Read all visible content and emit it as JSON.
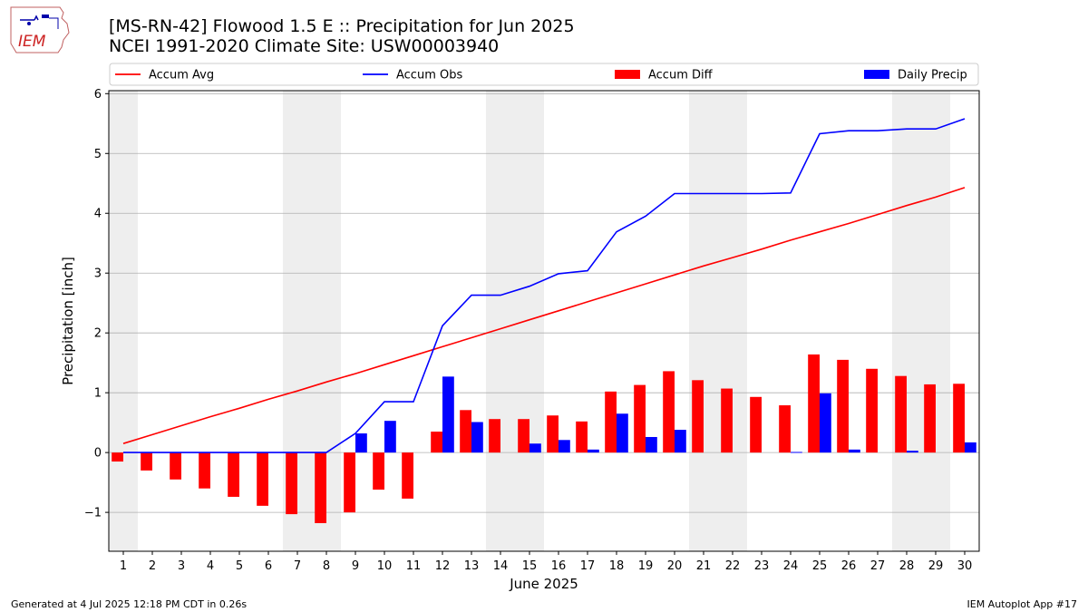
{
  "header": {
    "logo_text": "IEM",
    "title_line1": "[MS-RN-42] Flowood 1.5 E :: Precipitation for Jun 2025",
    "title_line2": "NCEI 1991-2020 Climate Site: USW00003940"
  },
  "footer": {
    "generated": "Generated at 4 Jul 2025 12:18 PM CDT in 0.26s",
    "app": "IEM Autoplot App #17"
  },
  "colors": {
    "avg": "#ff0000",
    "obs": "#0000ff",
    "diff": "#ff0000",
    "daily": "#0000ff",
    "weekend": "#eeeeee",
    "grid": "#b0b0b0"
  },
  "chart_data": {
    "type": "bar",
    "xlabel": "June 2025",
    "ylabel": "Precipitation [inch]",
    "ylim": [
      -1.65,
      6.05
    ],
    "yticks": [
      -1,
      0,
      1,
      2,
      3,
      4,
      5,
      6
    ],
    "xlim": [
      0.5,
      30.5
    ],
    "days": [
      1,
      2,
      3,
      4,
      5,
      6,
      7,
      8,
      9,
      10,
      11,
      12,
      13,
      14,
      15,
      16,
      17,
      18,
      19,
      20,
      21,
      22,
      23,
      24,
      25,
      26,
      27,
      28,
      29,
      30
    ],
    "weekend_shading": [
      [
        0.5,
        1.5
      ],
      [
        6.5,
        8.5
      ],
      [
        13.5,
        15.5
      ],
      [
        20.5,
        22.5
      ],
      [
        27.5,
        29.5
      ]
    ],
    "grid": true,
    "legend_position": "top",
    "legend": [
      "Accum Avg",
      "Accum Obs",
      "Accum Diff",
      "Daily Precip"
    ],
    "series": [
      {
        "name": "Accum Avg",
        "kind": "line",
        "values": [
          0.15,
          0.3,
          0.45,
          0.6,
          0.74,
          0.89,
          1.03,
          1.18,
          1.32,
          1.47,
          1.62,
          1.77,
          1.92,
          2.07,
          2.22,
          2.37,
          2.52,
          2.67,
          2.82,
          2.97,
          3.12,
          3.26,
          3.4,
          3.55,
          3.69,
          3.83,
          3.98,
          4.13,
          4.27,
          4.43
        ]
      },
      {
        "name": "Accum Obs",
        "kind": "line",
        "values": [
          0,
          0,
          0,
          0,
          0,
          0,
          0,
          0,
          0.32,
          0.85,
          0.85,
          2.12,
          2.63,
          2.63,
          2.78,
          2.99,
          3.04,
          3.69,
          3.95,
          4.33,
          4.33,
          4.33,
          4.33,
          4.34,
          5.33,
          5.38,
          5.38,
          5.41,
          5.41,
          5.58
        ]
      },
      {
        "name": "Accum Diff",
        "kind": "bar",
        "values": [
          -0.15,
          -0.3,
          -0.45,
          -0.6,
          -0.74,
          -0.89,
          -1.03,
          -1.18,
          -1.0,
          -0.62,
          -0.77,
          0.35,
          0.71,
          0.56,
          0.56,
          0.62,
          0.52,
          1.02,
          1.13,
          1.36,
          1.21,
          1.07,
          0.93,
          0.79,
          1.64,
          1.55,
          1.4,
          1.28,
          1.14,
          1.15
        ]
      },
      {
        "name": "Daily Precip",
        "kind": "bar",
        "values": [
          0,
          0,
          0,
          0,
          0,
          0,
          0,
          0,
          0.32,
          0.53,
          0,
          1.27,
          0.51,
          0,
          0.15,
          0.21,
          0.05,
          0.65,
          0.26,
          0.38,
          0,
          0,
          0,
          0.01,
          0.99,
          0.05,
          0,
          0.03,
          0,
          0.17
        ]
      }
    ]
  }
}
